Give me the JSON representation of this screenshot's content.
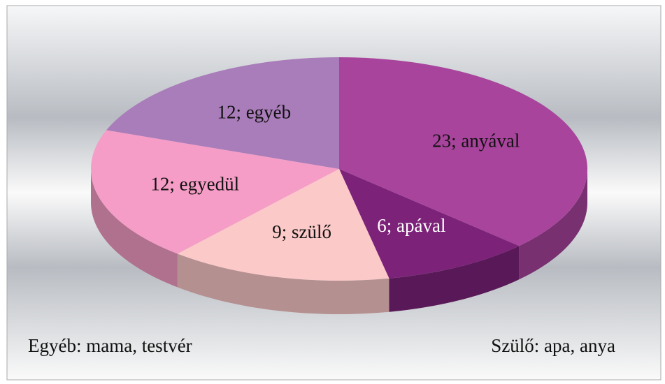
{
  "chart_data": {
    "type": "pie3d",
    "categories": [
      "anyával",
      "apával",
      "szülő",
      "egyedül",
      "egyéb"
    ],
    "values": [
      23,
      6,
      9,
      12,
      12
    ],
    "value_labels": [
      "23; anyával",
      "6; apával",
      "9; szülő",
      "12; egyedül",
      "12; egyéb"
    ],
    "colors": [
      "#a8449c",
      "#7c2279",
      "#fcc9c9",
      "#f59dc6",
      "#a97cba"
    ],
    "annotations": [
      "Egyéb: mama, testvér",
      "Szülő: apa, anya"
    ]
  }
}
